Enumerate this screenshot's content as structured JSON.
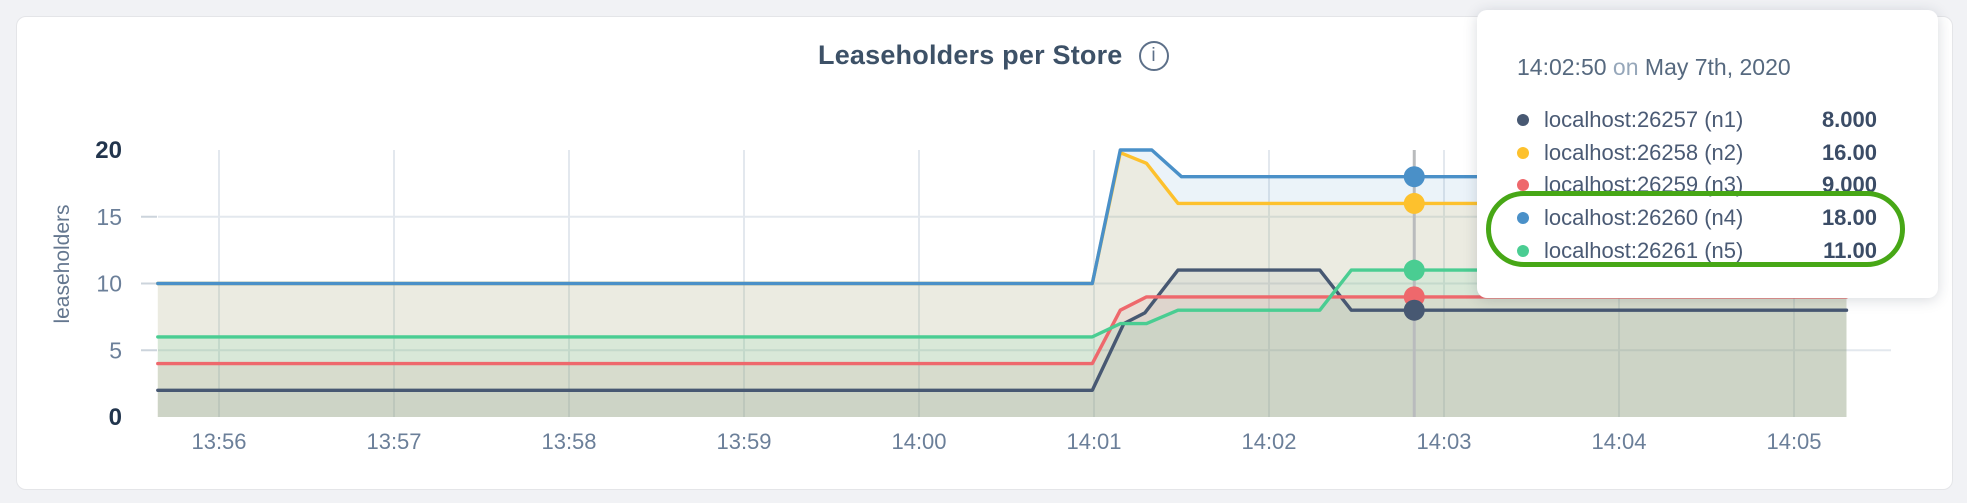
{
  "header": {
    "title": "Leaseholders per Store",
    "info_glyph": "i"
  },
  "y_axis": {
    "label": "leaseholders",
    "ticks": [
      {
        "label": "20",
        "v": 20,
        "strong": true
      },
      {
        "label": "15",
        "v": 15,
        "strong": false
      },
      {
        "label": "10",
        "v": 10,
        "strong": false
      },
      {
        "label": "5",
        "v": 5,
        "strong": false
      },
      {
        "label": "0",
        "v": 0,
        "strong": true
      }
    ]
  },
  "chart_style": {
    "grid_color": "#e3e8ee",
    "tick_dash_color": "#ccd4dc",
    "hover_line_color": "#b9bbbd",
    "axis_text_color": "#6b7f99",
    "axis_text_strong_color": "#22354d",
    "line_width": 3.4,
    "dot_radius": 10.5
  },
  "chart_data": {
    "type": "line",
    "title": "Leaseholders per Store",
    "ylabel": "leaseholders",
    "ylim": [
      0,
      20
    ],
    "grid": true,
    "y_grid_values": [
      15,
      10,
      5
    ],
    "x_ticks": [
      {
        "label": "13:56",
        "t": 0
      },
      {
        "label": "13:57",
        "t": 1
      },
      {
        "label": "13:58",
        "t": 2
      },
      {
        "label": "13:59",
        "t": 3
      },
      {
        "label": "14:00",
        "t": 4
      },
      {
        "label": "14:01",
        "t": 5
      },
      {
        "label": "14:02",
        "t": 6
      },
      {
        "label": "14:03",
        "t": 7
      },
      {
        "label": "14:04",
        "t": 8
      },
      {
        "label": "14:05",
        "t": 9
      }
    ],
    "x_note": "t is minutes after 13:56; data spans 13:55:39 to 14:05:15",
    "series": [
      {
        "name": "localhost:26257 (n1)",
        "color": "#475872",
        "fill_opacity": 0.08,
        "points": [
          [
            -0.35,
            2
          ],
          [
            4.99,
            2
          ],
          [
            5.17,
            7
          ],
          [
            5.29,
            7.8
          ],
          [
            5.48,
            11
          ],
          [
            6.29,
            11
          ],
          [
            6.47,
            8
          ],
          [
            9.3,
            8
          ]
        ]
      },
      {
        "name": "localhost:26258 (n2)",
        "color": "#fdc12d",
        "fill_opacity": 0.13,
        "points": [
          [
            -0.35,
            10
          ],
          [
            4.99,
            10
          ],
          [
            5.15,
            19.8
          ],
          [
            5.3,
            19
          ],
          [
            5.48,
            16
          ],
          [
            9.3,
            16
          ]
        ]
      },
      {
        "name": "localhost:26259 (n3)",
        "color": "#ee686c",
        "fill_opacity": 0.1,
        "points": [
          [
            -0.35,
            4
          ],
          [
            4.99,
            4
          ],
          [
            5.15,
            8
          ],
          [
            5.3,
            9
          ],
          [
            9.3,
            9
          ]
        ]
      },
      {
        "name": "localhost:26260 (n4)",
        "color": "#4a90c8",
        "fill_opacity": 0.11,
        "points": [
          [
            -0.35,
            10
          ],
          [
            4.99,
            10
          ],
          [
            5.15,
            20
          ],
          [
            5.33,
            20
          ],
          [
            5.5,
            18
          ],
          [
            9.3,
            18
          ]
        ]
      },
      {
        "name": "localhost:26261 (n5)",
        "color": "#4acd92",
        "fill_opacity": 0.11,
        "points": [
          [
            -0.35,
            6
          ],
          [
            4.99,
            6
          ],
          [
            5.15,
            7
          ],
          [
            5.3,
            7
          ],
          [
            5.48,
            8
          ],
          [
            6.29,
            8
          ],
          [
            6.47,
            11
          ],
          [
            9.3,
            11
          ]
        ]
      }
    ],
    "hover": {
      "t": 6.83,
      "values": [
        8,
        16,
        9,
        18,
        11
      ]
    }
  },
  "tooltip": {
    "time": "14:02:50",
    "on_word": "on",
    "date": "May 7th, 2020",
    "rows": [
      {
        "label": "localhost:26257 (n1)",
        "value": "8.000",
        "color": "#475872"
      },
      {
        "label": "localhost:26258 (n2)",
        "value": "16.00",
        "color": "#fdc12d"
      },
      {
        "label": "localhost:26259 (n3)",
        "value": "9.000",
        "color": "#ee686c"
      },
      {
        "label": "localhost:26260 (n4)",
        "value": "18.00",
        "color": "#4a90c8"
      },
      {
        "label": "localhost:26261 (n5)",
        "value": "11.00",
        "color": "#4acd92"
      }
    ],
    "annotation_color": "#47a716"
  }
}
